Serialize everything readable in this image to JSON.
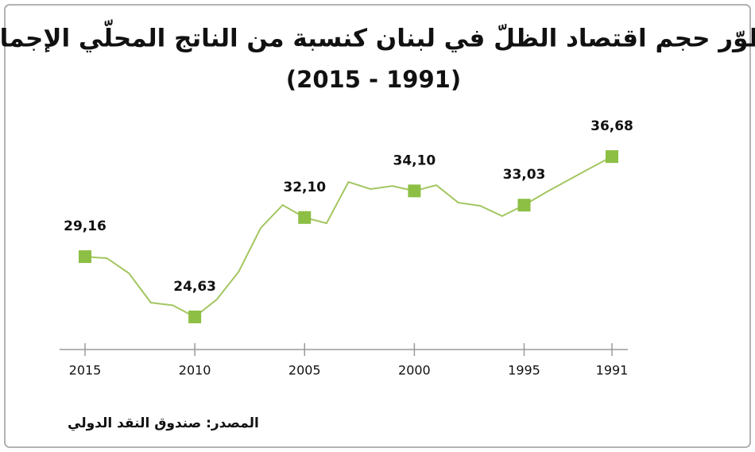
{
  "chart_data": {
    "type": "line",
    "title": "تطوّر حجم اقتصاد الظلّ في لبنان كنسبة من الناتج المحلّي الإجمالي",
    "subtitle": "(2015 - 1991)",
    "source": "المصدر: صندوق النقد الدولي",
    "x": [
      1991,
      1992,
      1993,
      1994,
      1995,
      1996,
      1997,
      1998,
      1999,
      2000,
      2001,
      2002,
      2003,
      2004,
      2005,
      2006,
      2007,
      2008,
      2009,
      2010,
      2011,
      2012,
      2013,
      2014,
      2015
    ],
    "values": [
      36.68,
      35.8,
      34.9,
      34.0,
      33.03,
      32.21,
      32.98,
      33.22,
      34.53,
      34.1,
      34.47,
      34.24,
      34.77,
      31.67,
      32.1,
      33.04,
      31.31,
      28.03,
      25.94,
      24.63,
      25.5,
      25.7,
      27.91,
      29.04,
      29.16
    ],
    "value_labels": [
      "36,68",
      null,
      null,
      null,
      "33,03",
      null,
      null,
      null,
      null,
      "34,10",
      null,
      null,
      null,
      null,
      "32,10",
      null,
      null,
      null,
      null,
      "24,63",
      null,
      null,
      null,
      null,
      "29,16"
    ],
    "color": "#a3c661",
    "marker_color": "#8dbf45",
    "xlim": [
      2015,
      1991
    ],
    "xticks": [
      2015,
      2010,
      2005,
      2000,
      1995,
      1991
    ],
    "ylim": [
      22,
      38
    ]
  }
}
